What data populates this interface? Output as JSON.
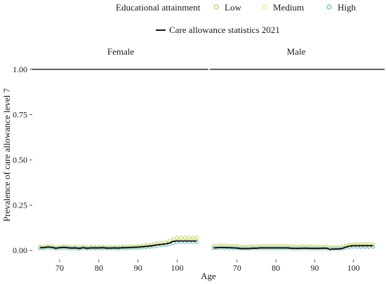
{
  "legend": {
    "educ_title": "Educational attainment",
    "educ_items": [
      {
        "label": "Low",
        "color": "#b3cf69"
      },
      {
        "label": "Medium",
        "color": "#f2e08a"
      },
      {
        "label": "High",
        "color": "#5db8d4"
      }
    ],
    "stat_label": "Care allowance statistics 2021",
    "stat_color": "#000000"
  },
  "chart_data": {
    "type": "scatter",
    "title": "",
    "xlabel": "Age",
    "ylabel": "Prevalence of care allowance level 7",
    "xlim": [
      63,
      108
    ],
    "ylim": [
      -0.05,
      1.05
    ],
    "x_ticks": [
      70,
      80,
      90,
      100
    ],
    "y_ticks": [
      0.0,
      0.25,
      0.5,
      0.75,
      1.0
    ],
    "y_tick_labels": [
      "0.00",
      "0.25",
      "0.50",
      "0.75",
      "1.00"
    ],
    "reference_line_y": 1.0,
    "panels": [
      {
        "name": "Female",
        "x": [
          65,
          66,
          67,
          68,
          69,
          70,
          71,
          72,
          73,
          74,
          75,
          76,
          77,
          78,
          79,
          80,
          81,
          82,
          83,
          84,
          85,
          86,
          87,
          88,
          89,
          90,
          91,
          92,
          93,
          94,
          95,
          96,
          97,
          98,
          99,
          100,
          101,
          102,
          103,
          104,
          105
        ],
        "series": [
          {
            "name": "Low",
            "values": [
              0.02,
              0.02,
              0.024,
              0.022,
              0.016,
              0.02,
              0.022,
              0.02,
              0.018,
              0.019,
              0.016,
              0.02,
              0.017,
              0.019,
              0.019,
              0.019,
              0.02,
              0.018,
              0.018,
              0.019,
              0.018,
              0.02,
              0.02,
              0.021,
              0.022,
              0.023,
              0.025,
              0.028,
              0.03,
              0.034,
              0.04,
              0.042,
              0.045,
              0.05,
              0.062,
              0.07,
              0.07,
              0.07,
              0.07,
              0.07,
              0.07
            ]
          },
          {
            "name": "Medium",
            "values": [
              0.016,
              0.016,
              0.02,
              0.018,
              0.013,
              0.016,
              0.018,
              0.016,
              0.014,
              0.015,
              0.012,
              0.016,
              0.013,
              0.015,
              0.015,
              0.015,
              0.016,
              0.014,
              0.014,
              0.015,
              0.014,
              0.016,
              0.016,
              0.017,
              0.018,
              0.019,
              0.021,
              0.023,
              0.025,
              0.028,
              0.033,
              0.035,
              0.038,
              0.042,
              0.052,
              0.058,
              0.058,
              0.058,
              0.058,
              0.058,
              0.058
            ]
          },
          {
            "name": "High",
            "values": [
              0.012,
              0.012,
              0.015,
              0.013,
              0.01,
              0.012,
              0.014,
              0.012,
              0.011,
              0.012,
              0.009,
              0.012,
              0.01,
              0.012,
              0.012,
              0.012,
              0.012,
              0.011,
              0.011,
              0.012,
              0.011,
              0.012,
              0.012,
              0.013,
              0.014,
              0.015,
              0.016,
              0.018,
              0.02,
              0.022,
              0.026,
              0.028,
              0.03,
              0.034,
              0.042,
              0.046,
              0.046,
              0.046,
              0.046,
              0.046,
              0.046
            ]
          },
          {
            "name": "Care allowance statistics 2021",
            "values": [
              0.015,
              0.016,
              0.019,
              0.017,
              0.012,
              0.015,
              0.017,
              0.015,
              0.013,
              0.014,
              0.011,
              0.015,
              0.012,
              0.014,
              0.014,
              0.014,
              0.015,
              0.013,
              0.013,
              0.014,
              0.013,
              0.015,
              0.015,
              0.016,
              0.017,
              0.018,
              0.02,
              0.022,
              0.024,
              0.027,
              0.031,
              0.033,
              0.036,
              0.04,
              0.05,
              0.052,
              0.052,
              0.052,
              0.052,
              0.052,
              0.052
            ]
          }
        ]
      },
      {
        "name": "Male",
        "x": [
          64,
          65,
          66,
          67,
          68,
          69,
          70,
          71,
          72,
          73,
          74,
          75,
          76,
          77,
          78,
          79,
          80,
          81,
          82,
          83,
          84,
          85,
          86,
          87,
          88,
          89,
          90,
          91,
          92,
          93,
          94,
          95,
          96,
          97,
          98,
          99,
          100,
          101,
          102,
          103,
          104,
          105
        ],
        "series": [
          {
            "name": "Low",
            "values": [
              0.024,
              0.026,
              0.027,
              0.026,
              0.026,
              0.024,
              0.024,
              0.02,
              0.02,
              0.02,
              0.022,
              0.022,
              0.024,
              0.024,
              0.024,
              0.024,
              0.024,
              0.024,
              0.024,
              0.024,
              0.022,
              0.02,
              0.02,
              0.022,
              0.022,
              0.02,
              0.02,
              0.02,
              0.02,
              0.02,
              0.016,
              0.018,
              0.018,
              0.02,
              0.026,
              0.032,
              0.034,
              0.034,
              0.034,
              0.034,
              0.034,
              0.034
            ]
          },
          {
            "name": "Medium",
            "values": [
              0.018,
              0.02,
              0.021,
              0.02,
              0.02,
              0.018,
              0.018,
              0.015,
              0.015,
              0.015,
              0.016,
              0.016,
              0.018,
              0.018,
              0.018,
              0.018,
              0.018,
              0.018,
              0.018,
              0.018,
              0.016,
              0.015,
              0.015,
              0.016,
              0.016,
              0.015,
              0.015,
              0.015,
              0.015,
              0.015,
              0.012,
              0.013,
              0.013,
              0.015,
              0.02,
              0.025,
              0.027,
              0.027,
              0.027,
              0.027,
              0.027,
              0.027
            ]
          },
          {
            "name": "High",
            "values": [
              0.012,
              0.013,
              0.014,
              0.013,
              0.013,
              0.012,
              0.012,
              0.01,
              0.01,
              0.01,
              0.011,
              0.011,
              0.012,
              0.012,
              0.012,
              0.012,
              0.012,
              0.012,
              0.012,
              0.012,
              0.011,
              0.01,
              0.01,
              0.011,
              0.011,
              0.01,
              0.01,
              0.01,
              0.01,
              0.01,
              0.008,
              0.009,
              0.009,
              0.01,
              0.014,
              0.018,
              0.02,
              0.02,
              0.02,
              0.02,
              0.02,
              0.02
            ]
          },
          {
            "name": "Care allowance statistics 2021",
            "values": [
              0.014,
              0.015,
              0.016,
              0.015,
              0.015,
              0.014,
              0.013,
              0.01,
              0.01,
              0.01,
              0.012,
              0.012,
              0.014,
              0.014,
              0.014,
              0.014,
              0.014,
              0.014,
              0.014,
              0.014,
              0.012,
              0.011,
              0.011,
              0.012,
              0.012,
              0.011,
              0.011,
              0.011,
              0.012,
              0.012,
              0.006,
              0.008,
              0.008,
              0.01,
              0.018,
              0.024,
              0.026,
              0.026,
              0.026,
              0.026,
              0.026,
              0.026
            ]
          }
        ]
      }
    ]
  }
}
